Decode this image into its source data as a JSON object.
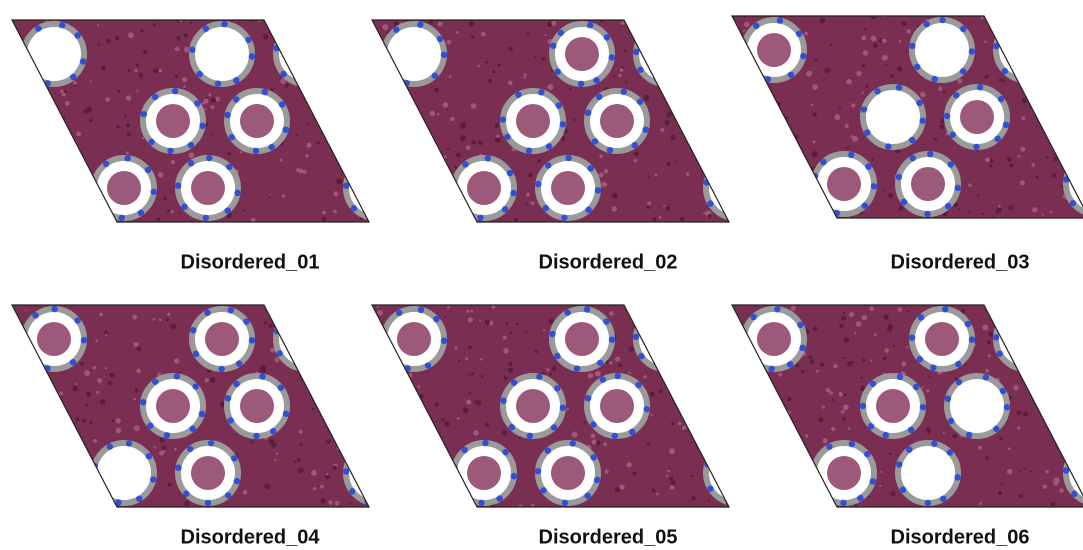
{
  "panels": [
    {
      "label": "Disordered_01"
    },
    {
      "label": "Disordered_02"
    },
    {
      "label": "Disordered_03"
    },
    {
      "label": "Disordered_04"
    },
    {
      "label": "Disordered_05"
    },
    {
      "label": "Disordered_06"
    }
  ]
}
